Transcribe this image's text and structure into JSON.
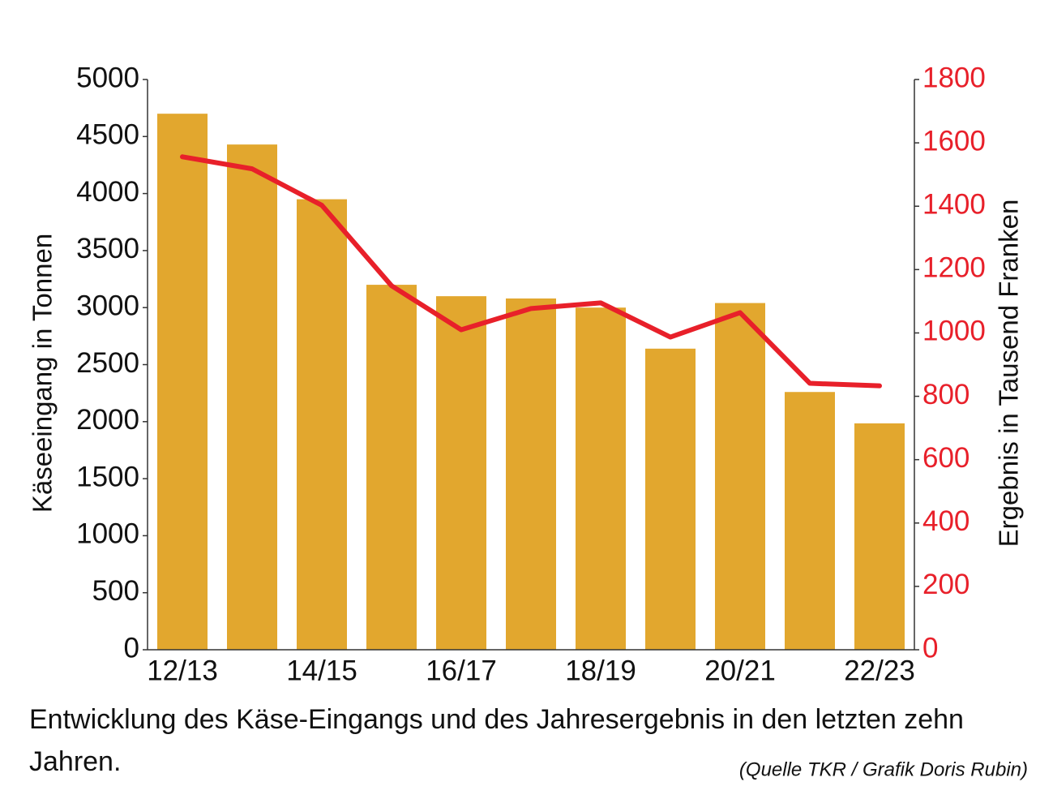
{
  "chart_data": {
    "type": "bar_line",
    "caption": "Entwicklung des Käse-Eingangs und des Jahresergebnis in den letzten zehn Jahren.",
    "source": "(Quelle TKR / Grafik Doris Rubin)",
    "y_label": "Käseeingang in Tonnen",
    "y2_label": "Ergebnis in Tausend Franken",
    "categories": [
      "12/13",
      null,
      "14/15",
      null,
      "16/17",
      null,
      "18/19",
      null,
      "20/21",
      null,
      "22/23"
    ],
    "series": [
      {
        "type": "bar",
        "color": "#e2a72e",
        "values": [
          4700,
          4430,
          3950,
          3200,
          3100,
          3080,
          3000,
          2640,
          3040,
          2260,
          1985
        ]
      },
      {
        "type": "line",
        "axis": "y2",
        "color": "#e8202a",
        "values": [
          1556,
          1518,
          1403,
          1149,
          1010,
          1077,
          1095,
          987,
          1064,
          841,
          833
        ]
      }
    ],
    "ylim": [
      0,
      5000
    ],
    "yticks": [
      0,
      500,
      1000,
      1500,
      2000,
      2500,
      3000,
      3500,
      4000,
      4500,
      5000
    ],
    "y2lim": [
      0,
      1800
    ],
    "y2ticks": [
      0,
      200,
      400,
      600,
      800,
      1000,
      1200,
      1400,
      1600,
      1800
    ],
    "y2_color": "#e8202a"
  }
}
